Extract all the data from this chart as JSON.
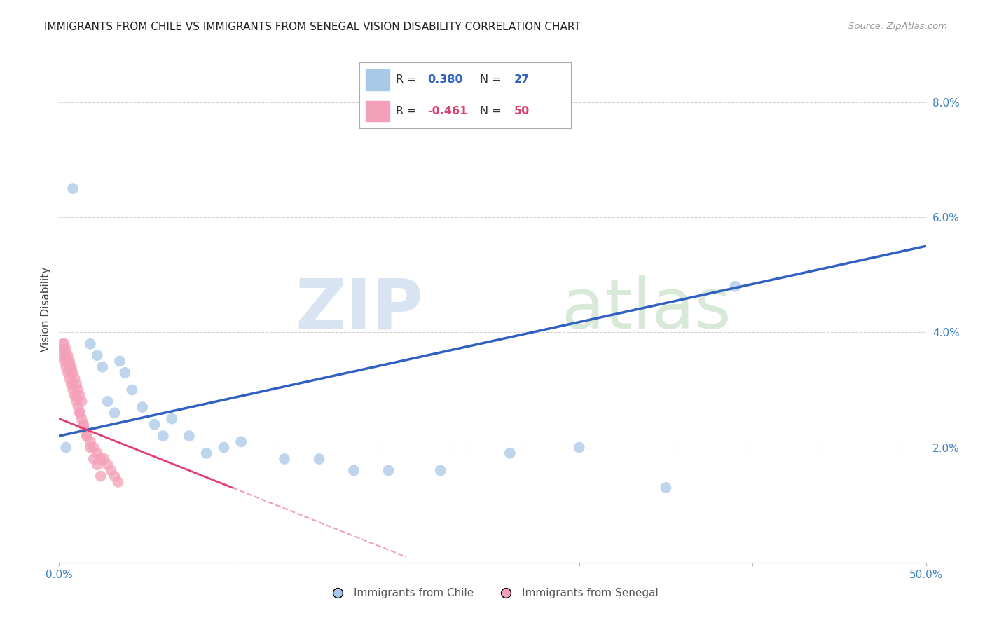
{
  "title": "IMMIGRANTS FROM CHILE VS IMMIGRANTS FROM SENEGAL VISION DISABILITY CORRELATION CHART",
  "source": "Source: ZipAtlas.com",
  "ylabel": "Vision Disability",
  "xlim": [
    0.0,
    0.5
  ],
  "ylim": [
    0.0,
    0.088
  ],
  "chile_color": "#a8c8e8",
  "senegal_color": "#f4a0b8",
  "chile_line_color": "#3060c0",
  "senegal_line_color": "#e04070",
  "chile_R": 0.38,
  "chile_N": 27,
  "senegal_R": -0.461,
  "senegal_N": 50,
  "legend_label_chile": "Immigrants from Chile",
  "legend_label_senegal": "Immigrants from Senegal",
  "chile_x": [
    0.008,
    0.018,
    0.022,
    0.025,
    0.028,
    0.032,
    0.035,
    0.038,
    0.042,
    0.048,
    0.055,
    0.06,
    0.065,
    0.075,
    0.085,
    0.095,
    0.105,
    0.13,
    0.15,
    0.17,
    0.19,
    0.22,
    0.26,
    0.3,
    0.35,
    0.39,
    0.004
  ],
  "chile_y": [
    0.065,
    0.038,
    0.036,
    0.034,
    0.028,
    0.026,
    0.035,
    0.033,
    0.03,
    0.027,
    0.024,
    0.022,
    0.025,
    0.022,
    0.019,
    0.02,
    0.021,
    0.018,
    0.018,
    0.016,
    0.016,
    0.016,
    0.019,
    0.02,
    0.013,
    0.048,
    0.02
  ],
  "senegal_x": [
    0.002,
    0.003,
    0.004,
    0.005,
    0.006,
    0.007,
    0.008,
    0.009,
    0.01,
    0.011,
    0.012,
    0.013,
    0.002,
    0.003,
    0.004,
    0.005,
    0.006,
    0.007,
    0.008,
    0.009,
    0.01,
    0.011,
    0.012,
    0.013,
    0.014,
    0.015,
    0.016,
    0.018,
    0.02,
    0.022,
    0.024,
    0.026,
    0.028,
    0.03,
    0.032,
    0.034,
    0.003,
    0.004,
    0.005,
    0.006,
    0.007,
    0.008,
    0.01,
    0.012,
    0.014,
    0.016,
    0.018,
    0.02,
    0.022,
    0.024
  ],
  "senegal_y": [
    0.038,
    0.038,
    0.037,
    0.036,
    0.035,
    0.034,
    0.033,
    0.032,
    0.031,
    0.03,
    0.029,
    0.028,
    0.036,
    0.035,
    0.034,
    0.033,
    0.032,
    0.031,
    0.03,
    0.029,
    0.028,
    0.027,
    0.026,
    0.025,
    0.024,
    0.023,
    0.022,
    0.021,
    0.02,
    0.019,
    0.018,
    0.018,
    0.017,
    0.016,
    0.015,
    0.014,
    0.037,
    0.036,
    0.035,
    0.034,
    0.033,
    0.031,
    0.029,
    0.026,
    0.024,
    0.022,
    0.02,
    0.018,
    0.017,
    0.015
  ]
}
